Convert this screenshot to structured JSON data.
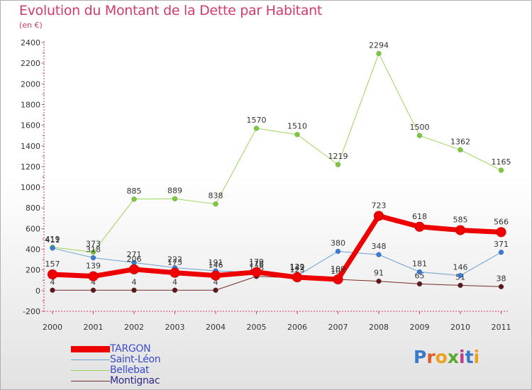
{
  "title": "Evolution du Montant de la Dette par Habitant",
  "subtitle": "(en €)",
  "logo": {
    "text": "Proxiti",
    "letter_colors": [
      "#3a78c8",
      "#e05a2b",
      "#f0a020",
      "#5aa832",
      "#c03a8a",
      "#3a78c8",
      "#f0a020"
    ]
  },
  "chart_data": {
    "type": "line",
    "categories": [
      "2000",
      "2001",
      "2002",
      "2003",
      "2004",
      "2005",
      "2006",
      "2007",
      "2008",
      "2009",
      "2010",
      "2011"
    ],
    "ylim": [
      -200,
      2400
    ],
    "yticks": [
      -200,
      0,
      200,
      400,
      600,
      800,
      1000,
      1200,
      1400,
      1600,
      1800,
      2000,
      2200,
      2400
    ],
    "grid": false,
    "legend_position": "bottom-left",
    "series": [
      {
        "name": "Montignac",
        "color": "#7a2a2a",
        "line_width": 1,
        "marker_color": "#5a1a1a",
        "values": [
          4,
          4,
          4,
          4,
          4,
          138,
          123,
          109,
          91,
          65,
          51,
          38
        ],
        "labels": [
          "4",
          "4",
          "4",
          "4",
          "4",
          "138",
          "123",
          "109",
          "91",
          "65",
          "51",
          "38"
        ]
      },
      {
        "name": "Bellebat",
        "color": "#99d65c",
        "line_width": 1,
        "marker_color": "#7ac83c",
        "values": [
          419,
          373,
          885,
          889,
          838,
          1570,
          1510,
          1219,
          2294,
          1500,
          1362,
          1165
        ],
        "labels": [
          "419",
          "373",
          "885",
          "889",
          "838",
          "1570",
          "1510",
          "1219",
          "2294",
          "1500",
          "1362",
          "1165"
        ]
      },
      {
        "name": "Saint-Léon",
        "color": "#6aa0d0",
        "line_width": 1,
        "marker_color": "#3a7ad0",
        "values": [
          411,
          318,
          271,
          222,
          191,
          176,
          142,
          380,
          348,
          181,
          146,
          371
        ],
        "labels": [
          "411",
          "318",
          "271",
          "222",
          "191",
          "176",
          "142",
          "380",
          "348",
          "181",
          "146",
          "371"
        ]
      },
      {
        "name": "TARGON",
        "color": "#ee0000",
        "line_width": 7,
        "marker_color": "#ee0000",
        "values": [
          157,
          139,
          206,
          173,
          146,
          179,
          129,
          109,
          723,
          618,
          585,
          566
        ],
        "labels": [
          "157",
          "139",
          "206",
          "173",
          "146",
          "179",
          "129",
          "109",
          "723",
          "618",
          "585",
          "566"
        ]
      }
    ],
    "legend_order": [
      "TARGON",
      "Saint-Léon",
      "Bellebat",
      "Montignac"
    ]
  }
}
